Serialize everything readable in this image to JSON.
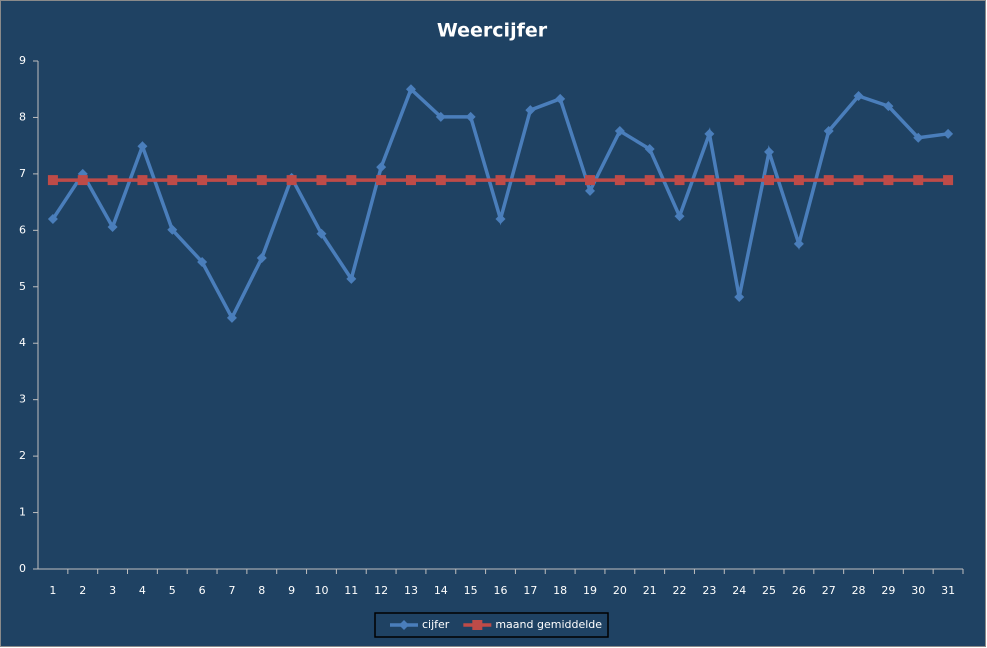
{
  "chart_data": {
    "type": "line",
    "title": "Weercijfer",
    "categories": [
      "1",
      "2",
      "3",
      "4",
      "5",
      "6",
      "7",
      "8",
      "9",
      "10",
      "11",
      "12",
      "13",
      "14",
      "15",
      "16",
      "17",
      "18",
      "19",
      "20",
      "21",
      "22",
      "23",
      "24",
      "25",
      "26",
      "27",
      "28",
      "29",
      "30",
      "31"
    ],
    "series": [
      {
        "name": "cijfer",
        "color": "#4a7ebb",
        "marker": "diamond",
        "values": [
          6.2,
          7.0,
          6.06,
          7.49,
          6.01,
          5.44,
          4.45,
          5.51,
          6.93,
          5.94,
          5.14,
          7.12,
          8.5,
          8.01,
          8.01,
          6.2,
          8.13,
          8.33,
          6.7,
          7.76,
          7.44,
          6.25,
          7.71,
          4.82,
          7.39,
          5.76,
          7.76,
          8.38,
          8.2,
          7.64,
          7.71
        ]
      },
      {
        "name": "maand gemiddelde",
        "color": "#be4b48",
        "marker": "square",
        "values": [
          6.89,
          6.89,
          6.89,
          6.89,
          6.89,
          6.89,
          6.89,
          6.89,
          6.89,
          6.89,
          6.89,
          6.89,
          6.89,
          6.89,
          6.89,
          6.89,
          6.89,
          6.89,
          6.89,
          6.89,
          6.89,
          6.89,
          6.89,
          6.89,
          6.89,
          6.89,
          6.89,
          6.89,
          6.89,
          6.89,
          6.89
        ]
      }
    ],
    "ylim": [
      0,
      9
    ],
    "yticks": [
      0,
      1,
      2,
      3,
      4,
      5,
      6,
      7,
      8,
      9
    ],
    "grid": false,
    "legend": "bottom"
  }
}
